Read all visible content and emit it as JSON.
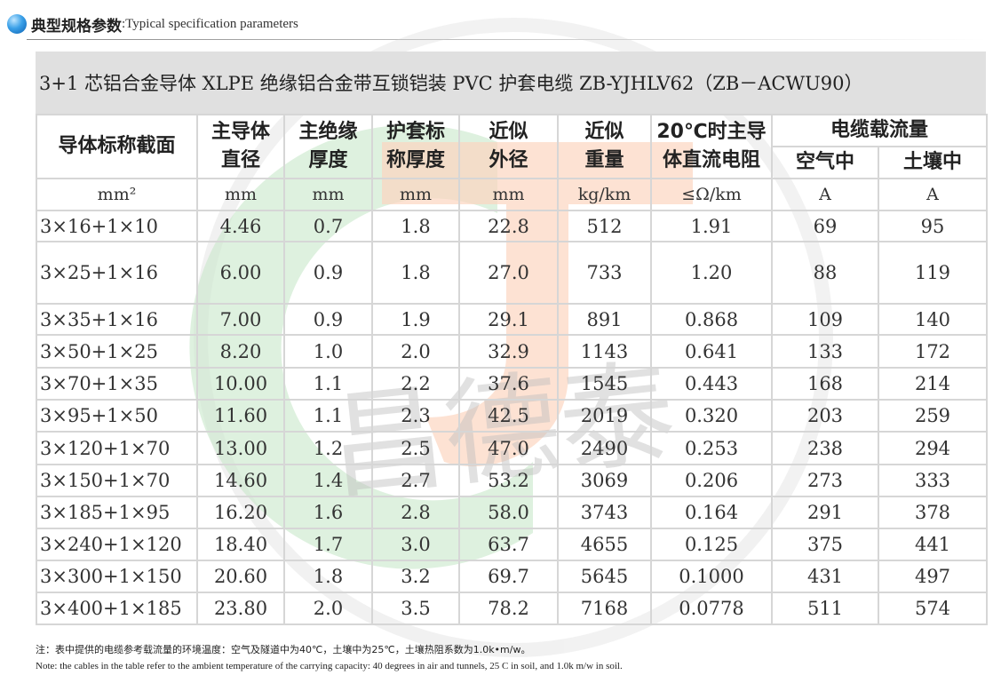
{
  "section": {
    "title_cn": "典型规格参数",
    "title_en": ":Typical specification parameters"
  },
  "table": {
    "caption": "3+1 芯铝合金导体 XLPE 绝缘铝合金带互锁铠装 PVC 护套电缆   ZB-YJHLV62（ZB－ACWU90）",
    "headers": {
      "section": "导体标称截面",
      "conductor_dia": [
        "主导体",
        "直径"
      ],
      "insulation": [
        "主绝缘",
        "厚度"
      ],
      "sheath": [
        "护套标",
        "称厚度"
      ],
      "outer_dia": [
        "近似",
        "外径"
      ],
      "weight": [
        "近似",
        "重量"
      ],
      "resistance": [
        "20℃时主导",
        "体直流电阻"
      ],
      "ampacity": "电缆载流量",
      "air": "空气中",
      "soil": "土壤中"
    },
    "units": [
      "mm²",
      "mm",
      "mm",
      "mm",
      "mm",
      "kg/km",
      "≤Ω/km",
      "A",
      "A"
    ],
    "rows": [
      [
        "3×16+1×10",
        "4.46",
        "0.7",
        "1.8",
        "22.8",
        "512",
        "1.91",
        "69",
        "95"
      ],
      [
        "3×25+1×16",
        "6.00",
        "0.9",
        "1.8",
        "27.0",
        "733",
        "1.20",
        "88",
        "119"
      ],
      [
        "3×35+1×16",
        "7.00",
        "0.9",
        "1.9",
        "29.1",
        "891",
        "0.868",
        "109",
        "140"
      ],
      [
        "3×50+1×25",
        "8.20",
        "1.0",
        "2.0",
        "32.9",
        "1143",
        "0.641",
        "133",
        "172"
      ],
      [
        "3×70+1×35",
        "10.00",
        "1.1",
        "2.2",
        "37.6",
        "1545",
        "0.443",
        "168",
        "214"
      ],
      [
        "3×95+1×50",
        "11.60",
        "1.1",
        "2.3",
        "42.5",
        "2019",
        "0.320",
        "203",
        "259"
      ],
      [
        "3×120+1×70",
        "13.00",
        "1.2",
        "2.5",
        "47.0",
        "2490",
        "0.253",
        "238",
        "294"
      ],
      [
        "3×150+1×70",
        "14.60",
        "1.4",
        "2.7",
        "53.2",
        "3069",
        "0.206",
        "273",
        "333"
      ],
      [
        "3×185+1×95",
        "16.20",
        "1.6",
        "2.8",
        "58.0",
        "3743",
        "0.164",
        "291",
        "378"
      ],
      [
        "3×240+1×120",
        "18.40",
        "1.7",
        "3.0",
        "63.7",
        "4655",
        "0.125",
        "375",
        "441"
      ],
      [
        "3×300+1×150",
        "20.60",
        "1.8",
        "3.2",
        "69.7",
        "5645",
        "0.1000",
        "431",
        "497"
      ],
      [
        "3×400+1×185",
        "23.80",
        "2.0",
        "3.5",
        "78.2",
        "7168",
        "0.0778",
        "511",
        "574"
      ]
    ]
  },
  "notes": {
    "cn": "注：表中提供的电缆参考载流量的环境温度：空气及隧道中为40℃，土壤中为25℃，土壤热阻系数为1.0k•m/w。",
    "en": "Note: the cables in the table refer to the ambient temperature of the carrying capacity: 40 degrees in air and tunnels, 25 C in soil, and 1.0k m/w in soil."
  },
  "watermark": {
    "text": "昌德泰",
    "colors": [
      "#8fc98a",
      "#f7a878",
      "#c8c8c8"
    ]
  }
}
